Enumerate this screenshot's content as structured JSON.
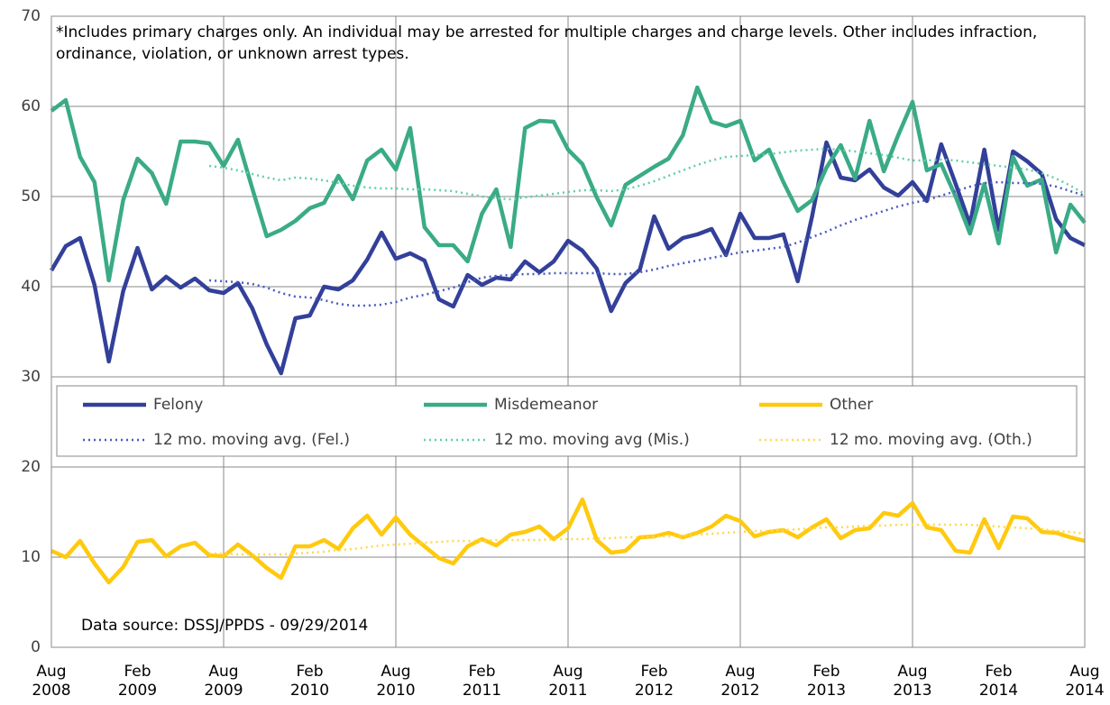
{
  "chart_data": {
    "type": "line",
    "annotations": [
      "*Includes primary charges only. An individual may be arrested for multiple charges and charge levels.  Other includes infraction, ordinance, violation, or unknown arrest types.",
      "Data source: DSSJ/PPDS - 09/29/2014"
    ],
    "categories": [
      "Aug 2008",
      null,
      null,
      null,
      null,
      null,
      "Feb 2009",
      null,
      null,
      null,
      null,
      null,
      "Aug 2009",
      null,
      null,
      null,
      null,
      null,
      "Feb 2010",
      null,
      null,
      null,
      null,
      null,
      "Aug 2010",
      null,
      null,
      null,
      null,
      null,
      "Feb 2011",
      null,
      null,
      null,
      null,
      null,
      "Aug 2011",
      null,
      null,
      null,
      null,
      null,
      "Feb 2012",
      null,
      null,
      null,
      null,
      null,
      "Aug 2012",
      null,
      null,
      null,
      null,
      null,
      "Feb 2013",
      null,
      null,
      null,
      null,
      null,
      "Aug 2013",
      null,
      null,
      null,
      null,
      null,
      "Feb 2014",
      null,
      null,
      null,
      null,
      null,
      "Aug 2014"
    ],
    "ylim": [
      0,
      70
    ],
    "yticks": [
      0,
      10,
      20,
      30,
      40,
      50,
      60,
      70
    ],
    "grid": true,
    "legend": "inside",
    "series": [
      {
        "name": "Felony",
        "color": "#33409a",
        "line_style": "solid",
        "values": [
          41.8,
          44.5,
          45.4,
          40.2,
          31.7,
          39.5,
          44.3,
          39.7,
          41.1,
          39.9,
          40.9,
          39.6,
          39.3,
          40.4,
          37.6,
          33.6,
          30.4,
          36.5,
          36.8,
          40.0,
          39.7,
          40.7,
          43.0,
          46.0,
          43.1,
          43.7,
          42.9,
          38.6,
          37.8,
          41.3,
          40.2,
          41.0,
          40.8,
          42.8,
          41.6,
          42.8,
          45.1,
          44.0,
          42.0,
          37.3,
          40.4,
          41.9,
          47.8,
          44.2,
          45.4,
          45.8,
          46.4,
          43.5,
          48.1,
          45.4,
          45.4,
          45.8,
          40.6,
          47.8,
          56.0,
          52.1,
          51.8,
          53.0,
          51.0,
          50.1,
          51.6,
          49.5,
          55.8,
          51.4,
          46.9,
          55.2,
          46.3,
          55.0,
          53.9,
          52.5,
          47.5,
          45.4,
          44.6
        ]
      },
      {
        "name": "Misdemeanor",
        "color": "#3aab86",
        "line_style": "solid",
        "values": [
          59.5,
          60.7,
          54.4,
          51.6,
          40.7,
          49.6,
          54.2,
          52.6,
          49.2,
          56.1,
          56.1,
          55.9,
          53.4,
          56.3,
          50.9,
          45.6,
          46.3,
          47.3,
          48.7,
          49.3,
          52.3,
          49.7,
          54.0,
          55.2,
          53.0,
          57.6,
          46.6,
          44.6,
          44.6,
          42.8,
          48.1,
          50.8,
          44.4,
          57.6,
          58.4,
          58.3,
          55.2,
          53.6,
          49.9,
          46.8,
          51.3,
          52.3,
          53.3,
          54.2,
          56.8,
          62.1,
          58.3,
          57.8,
          58.4,
          54.0,
          55.2,
          51.6,
          48.4,
          49.6,
          53.2,
          55.7,
          52.0,
          58.4,
          52.8,
          56.8,
          60.5,
          52.9,
          53.6,
          50.0,
          45.9,
          51.4,
          44.8,
          54.4,
          51.2,
          51.9,
          43.8,
          49.1,
          47.1
        ]
      },
      {
        "name": "Other",
        "color": "#ffc90e",
        "line_style": "solid",
        "values": [
          10.7,
          10.0,
          11.8,
          9.3,
          7.2,
          8.9,
          11.7,
          11.9,
          10.1,
          11.2,
          11.6,
          10.2,
          10.1,
          11.4,
          10.2,
          8.8,
          7.7,
          11.2,
          11.2,
          11.9,
          10.9,
          13.2,
          14.6,
          12.5,
          14.4,
          12.5,
          11.2,
          9.9,
          9.3,
          11.2,
          12.0,
          11.3,
          12.5,
          12.8,
          13.4,
          12.0,
          13.2,
          16.4,
          11.9,
          10.5,
          10.7,
          12.2,
          12.3,
          12.7,
          12.2,
          12.7,
          13.4,
          14.6,
          14.0,
          12.3,
          12.8,
          13.0,
          12.2,
          13.3,
          14.2,
          12.1,
          13.0,
          13.2,
          14.9,
          14.6,
          16.0,
          13.3,
          13.0,
          10.7,
          10.5,
          14.2,
          11.0,
          14.5,
          14.3,
          12.8,
          12.7,
          12.2,
          11.8
        ]
      },
      {
        "name": "12 mo. moving avg. (Fel.)",
        "color": "#4a5ac0",
        "line_style": "dotted",
        "values": [
          null,
          null,
          null,
          null,
          null,
          null,
          null,
          null,
          null,
          null,
          null,
          40.7,
          40.6,
          40.5,
          40.3,
          39.9,
          39.3,
          38.9,
          38.8,
          38.5,
          38.1,
          37.9,
          37.9,
          38.0,
          38.3,
          38.8,
          39.1,
          39.5,
          39.9,
          40.5,
          41.0,
          41.2,
          41.3,
          41.4,
          41.4,
          41.5,
          41.5,
          41.5,
          41.5,
          41.4,
          41.4,
          41.6,
          41.9,
          42.3,
          42.6,
          42.9,
          43.2,
          43.5,
          43.8,
          44.0,
          44.2,
          44.4,
          44.9,
          45.5,
          46.1,
          46.8,
          47.4,
          47.9,
          48.4,
          48.9,
          49.3,
          49.6,
          50.1,
          50.6,
          51.1,
          51.5,
          51.6,
          51.5,
          51.5,
          51.4,
          51.1,
          50.6,
          50.1
        ]
      },
      {
        "name": "12 mo. moving avg (Mis.)",
        "color": "#5fd0a8",
        "line_style": "dotted",
        "values": [
          null,
          null,
          null,
          null,
          null,
          null,
          null,
          null,
          null,
          null,
          null,
          53.4,
          53.2,
          52.9,
          52.5,
          52.1,
          51.8,
          52.1,
          52.0,
          51.8,
          51.5,
          51.2,
          51.0,
          50.9,
          50.9,
          50.8,
          50.8,
          50.7,
          50.6,
          50.3,
          50.0,
          49.8,
          49.7,
          49.9,
          50.1,
          50.3,
          50.5,
          50.7,
          50.7,
          50.6,
          50.8,
          51.2,
          51.7,
          52.3,
          52.9,
          53.5,
          54.0,
          54.4,
          54.5,
          54.6,
          54.7,
          54.9,
          55.1,
          55.2,
          55.3,
          55.2,
          55.0,
          54.8,
          54.6,
          54.3,
          54.0,
          54.0,
          54.1,
          54.0,
          53.8,
          53.6,
          53.4,
          53.2,
          53.0,
          52.6,
          52.0,
          51.2,
          50.3
        ]
      },
      {
        "name": "12 mo. moving avg. (Oth.)",
        "color": "#ffd84a",
        "line_style": "dotted",
        "values": [
          null,
          null,
          null,
          null,
          null,
          null,
          null,
          null,
          null,
          null,
          null,
          10.4,
          10.4,
          10.3,
          10.3,
          10.3,
          10.3,
          10.4,
          10.5,
          10.6,
          10.8,
          10.9,
          11.1,
          11.3,
          11.4,
          11.5,
          11.6,
          11.7,
          11.8,
          11.8,
          11.8,
          11.9,
          11.9,
          11.9,
          11.9,
          12.0,
          12.0,
          12.0,
          12.1,
          12.1,
          12.2,
          12.2,
          12.3,
          12.3,
          12.4,
          12.5,
          12.6,
          12.7,
          12.8,
          12.9,
          12.9,
          13.0,
          13.1,
          13.2,
          13.3,
          13.3,
          13.4,
          13.5,
          13.5,
          13.6,
          13.6,
          13.6,
          13.6,
          13.6,
          13.6,
          13.5,
          13.4,
          13.3,
          13.2,
          13.1,
          12.9,
          12.8,
          12.6
        ]
      }
    ]
  }
}
